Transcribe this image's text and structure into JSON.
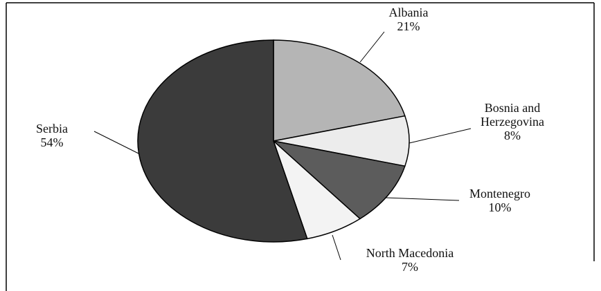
{
  "chart_data": {
    "type": "pie",
    "categories": [
      "Albania",
      "Bosnia and Herzegovina",
      "Montenegro",
      "North Macedonia",
      "Serbia"
    ],
    "values": [
      21,
      8,
      10,
      7,
      54
    ],
    "value_labels": [
      "21%",
      "8%",
      "10%",
      "7%",
      "54%"
    ],
    "colors": [
      "#b5b5b5",
      "#ececec",
      "#5c5c5c",
      "#f3f3f3",
      "#3b3b3b"
    ]
  }
}
